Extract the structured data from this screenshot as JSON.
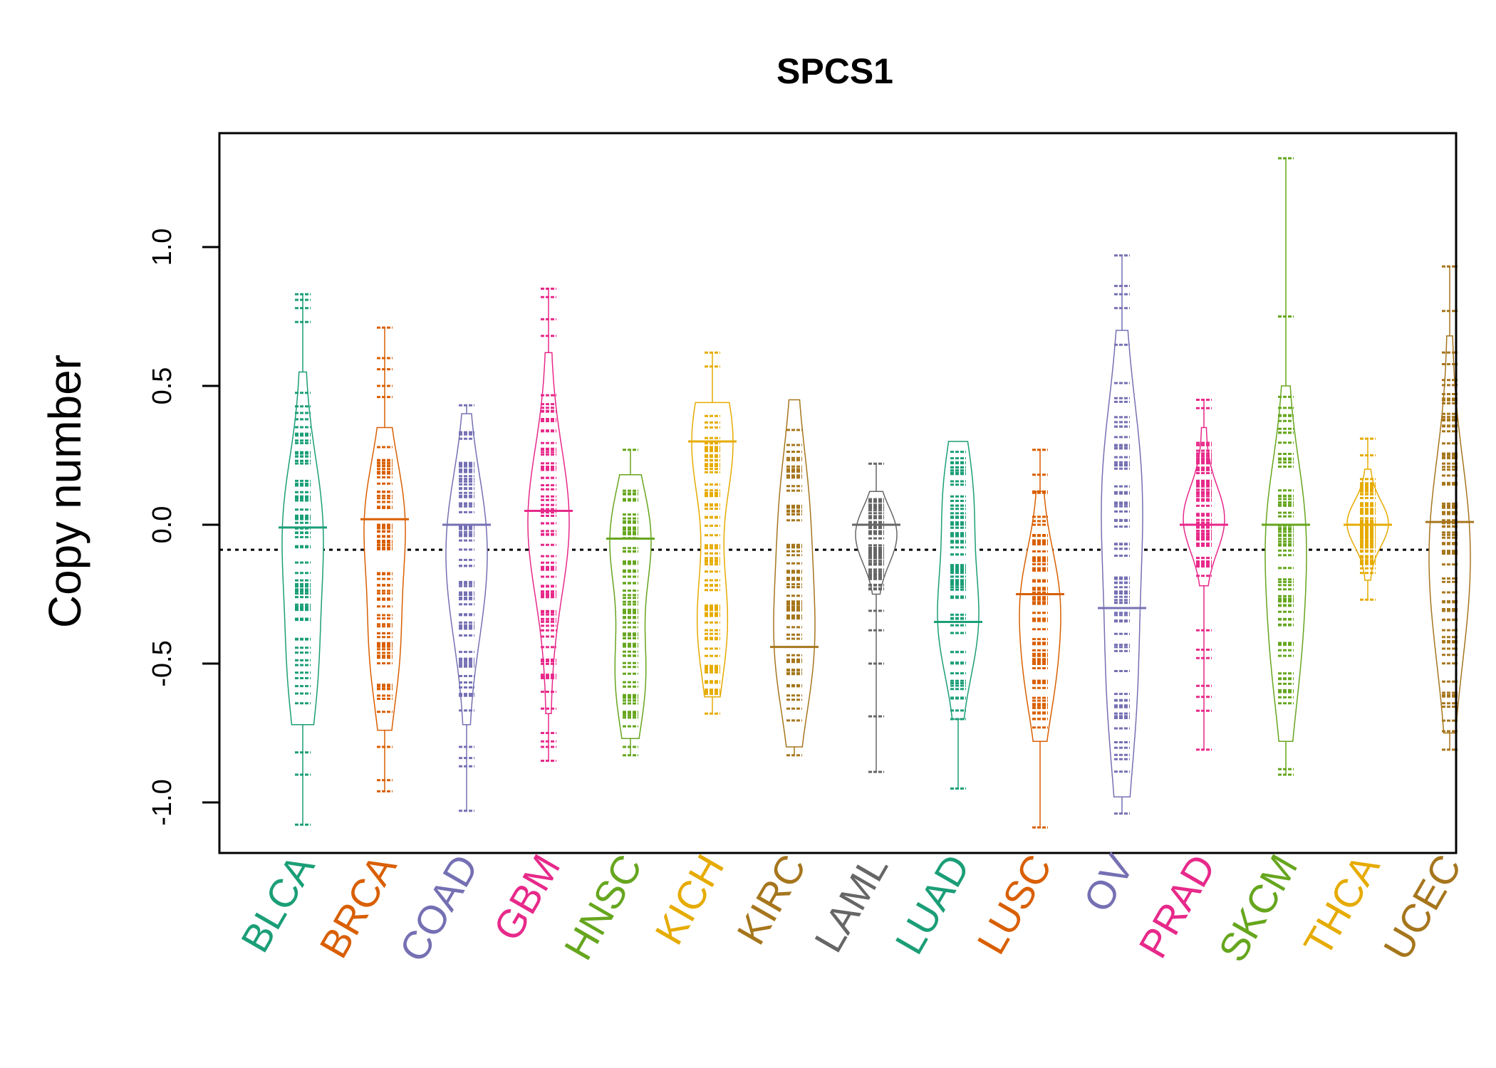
{
  "chart_data": {
    "type": "beanplot",
    "title": "SPCS1",
    "xlabel": "",
    "ylabel": "Copy number",
    "ylim": [
      -1.18,
      1.42
    ],
    "yticks": [
      -1.0,
      -0.5,
      0.0,
      0.5,
      1.0
    ],
    "ytick_labels": [
      "-1.0",
      "-0.5",
      "0.0",
      "0.5",
      "1.0"
    ],
    "reference_line": -0.09,
    "categories": [
      "BLCA",
      "BRCA",
      "COAD",
      "GBM",
      "HNSC",
      "KICH",
      "KIRC",
      "LAML",
      "LUAD",
      "LUSC",
      "OV",
      "PRAD",
      "SKCM",
      "THCA",
      "UCEC"
    ],
    "colors": [
      "#1B9E77",
      "#D95F02",
      "#7570B3",
      "#E7298A",
      "#66A61E",
      "#E6AB02",
      "#A6761D",
      "#666666",
      "#1B9E77",
      "#D95F02",
      "#7570B3",
      "#E7298A",
      "#66A61E",
      "#E6AB02",
      "#A6761D"
    ],
    "series": [
      {
        "name": "BLCA",
        "min": -1.08,
        "max": 0.83,
        "median": -0.01,
        "dense_min": -0.72,
        "dense_max": 0.55,
        "modes": [
          0.0,
          -0.52
        ],
        "outliers": [
          0.83,
          0.81,
          0.78,
          0.73,
          -0.82,
          -0.9,
          -1.08
        ]
      },
      {
        "name": "BRCA",
        "min": -0.96,
        "max": 0.71,
        "median": 0.02,
        "dense_min": -0.74,
        "dense_max": 0.35,
        "modes": [
          0.02,
          -0.45
        ],
        "outliers": [
          0.71,
          0.6,
          0.56,
          0.5,
          0.46,
          -0.8,
          -0.92,
          -0.96
        ]
      },
      {
        "name": "COAD",
        "min": -1.03,
        "max": 0.43,
        "median": 0.0,
        "dense_min": -0.72,
        "dense_max": 0.4,
        "modes": [
          0.0,
          -0.3
        ],
        "outliers": [
          0.43,
          -0.8,
          -0.84,
          -0.87,
          -1.03
        ]
      },
      {
        "name": "GBM",
        "min": -0.85,
        "max": 0.85,
        "median": 0.05,
        "dense_min": -0.68,
        "dense_max": 0.62,
        "modes": [
          0.05,
          -0.05
        ],
        "outliers": [
          0.85,
          0.82,
          0.74,
          0.68,
          -0.75,
          -0.78,
          -0.8,
          -0.85
        ]
      },
      {
        "name": "HNSC",
        "min": -0.83,
        "max": 0.27,
        "median": -0.05,
        "dense_min": -0.77,
        "dense_max": 0.18,
        "modes": [
          -0.05,
          -0.55
        ],
        "outliers": [
          0.27,
          -0.8,
          -0.83
        ]
      },
      {
        "name": "KICH",
        "min": -0.68,
        "max": 0.62,
        "median": 0.3,
        "dense_min": -0.62,
        "dense_max": 0.44,
        "modes": [
          0.3,
          -0.35
        ],
        "outliers": [
          0.62,
          0.57,
          -0.68
        ]
      },
      {
        "name": "KIRC",
        "min": -0.83,
        "max": 0.45,
        "median": -0.44,
        "dense_min": -0.8,
        "dense_max": 0.45,
        "modes": [
          -0.44,
          0.05
        ],
        "outliers": [
          -0.83
        ]
      },
      {
        "name": "LAML",
        "min": -0.89,
        "max": 0.22,
        "median": 0.0,
        "dense_min": -0.25,
        "dense_max": 0.12,
        "modes": [
          0.0,
          -0.1
        ],
        "outliers": [
          0.22,
          -0.31,
          -0.38,
          -0.5,
          -0.69,
          -0.89
        ]
      },
      {
        "name": "LUAD",
        "min": -0.95,
        "max": 0.3,
        "median": -0.35,
        "dense_min": -0.7,
        "dense_max": 0.3,
        "modes": [
          -0.35,
          0.1
        ],
        "outliers": [
          -0.7,
          -0.95
        ]
      },
      {
        "name": "LUSC",
        "min": -1.09,
        "max": 0.27,
        "median": -0.25,
        "dense_min": -0.78,
        "dense_max": 0.12,
        "modes": [
          -0.25,
          -0.55
        ],
        "outliers": [
          0.27,
          0.18,
          0.12,
          -1.09
        ]
      },
      {
        "name": "OV",
        "min": -1.04,
        "max": 0.97,
        "median": -0.3,
        "dense_min": -0.98,
        "dense_max": 0.7,
        "modes": [
          0.12,
          -0.58
        ],
        "outliers": [
          0.97,
          0.86,
          0.83,
          0.78,
          -1.04
        ]
      },
      {
        "name": "PRAD",
        "min": -0.81,
        "max": 0.45,
        "median": 0.0,
        "dense_min": -0.22,
        "dense_max": 0.35,
        "modes": [
          0.0,
          0.05
        ],
        "outliers": [
          0.45,
          0.42,
          -0.38,
          -0.45,
          -0.48,
          -0.58,
          -0.62,
          -0.67,
          -0.81
        ]
      },
      {
        "name": "SKCM",
        "min": -0.9,
        "max": 1.32,
        "median": 0.0,
        "dense_min": -0.78,
        "dense_max": 0.5,
        "modes": [
          0.0,
          -0.45
        ],
        "outliers": [
          1.32,
          0.75,
          -0.88,
          -0.9
        ]
      },
      {
        "name": "THCA",
        "min": -0.27,
        "max": 0.31,
        "median": 0.0,
        "dense_min": -0.2,
        "dense_max": 0.2,
        "modes": [
          0.0,
          0.01
        ],
        "outliers": [
          0.31,
          0.25,
          -0.27
        ]
      },
      {
        "name": "UCEC",
        "min": -0.81,
        "max": 0.93,
        "median": 0.01,
        "dense_min": -0.75,
        "dense_max": 0.68,
        "modes": [
          0.01,
          -0.35
        ],
        "outliers": [
          0.93,
          0.77,
          -0.81
        ]
      }
    ]
  }
}
